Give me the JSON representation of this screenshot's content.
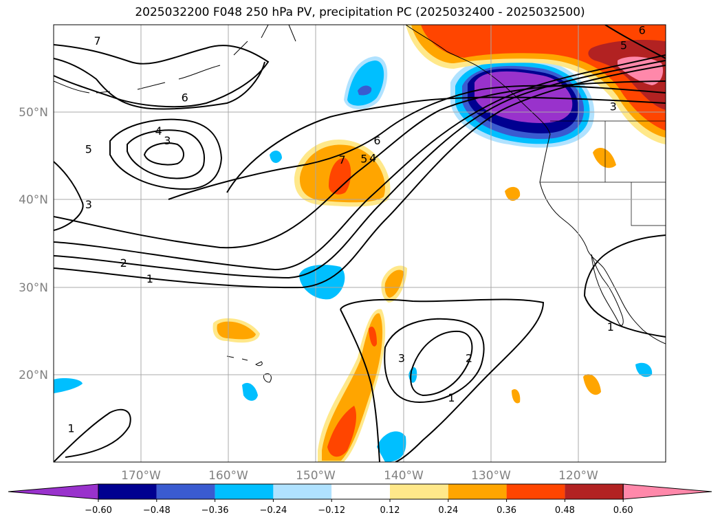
{
  "title": "2025032200 F048 250 hPa PV, precipitation PC (2025032400 - 2025032500)",
  "map": {
    "lat_labels": [
      "50°N",
      "40°N",
      "30°N",
      "20°N"
    ],
    "lon_labels": [
      "170°W",
      "160°W",
      "150°W",
      "140°W",
      "130°W",
      "120°W"
    ],
    "extent": {
      "lon": [
        -180,
        -110
      ],
      "lat": [
        10,
        60
      ]
    },
    "pv_contour_labels": [
      {
        "text": "7",
        "lon": -175,
        "lat": 58.2
      },
      {
        "text": "6",
        "lon": -165,
        "lat": 51.7
      },
      {
        "text": "4",
        "lon": -168,
        "lat": 47.9
      },
      {
        "text": "3",
        "lon": -167,
        "lat": 46.8
      },
      {
        "text": "5",
        "lon": -176,
        "lat": 45.8
      },
      {
        "text": "3",
        "lon": -176,
        "lat": 39.5
      },
      {
        "text": "2",
        "lon": -172,
        "lat": 32.8
      },
      {
        "text": "1",
        "lon": -169,
        "lat": 31.0
      },
      {
        "text": "7",
        "lon": -147,
        "lat": 44.6
      },
      {
        "text": "6",
        "lon": -143,
        "lat": 46.8
      },
      {
        "text": "5",
        "lon": -144.5,
        "lat": 44.7
      },
      {
        "text": "4",
        "lon": -143.5,
        "lat": 44.8
      },
      {
        "text": "3",
        "lon": -116,
        "lat": 50.7
      },
      {
        "text": "5",
        "lon": -114.8,
        "lat": 57.7
      },
      {
        "text": "6",
        "lon": -112.7,
        "lat": 59.4
      },
      {
        "text": "3",
        "lon": -140.2,
        "lat": 21.9
      },
      {
        "text": "2",
        "lon": -132.5,
        "lat": 21.9
      },
      {
        "text": "1",
        "lon": -134.5,
        "lat": 17.4
      },
      {
        "text": "1",
        "lon": -116.3,
        "lat": 25.5
      },
      {
        "text": "1",
        "lon": -178,
        "lat": 13.9
      }
    ],
    "precip_shading": [
      {
        "class": "pos_strong",
        "color": "#ff4500",
        "lon": -146,
        "lat": 42.5
      },
      {
        "class": "neg_strong",
        "color": "#000080",
        "lon": -126,
        "lat": 51.5
      },
      {
        "class": "pos_peak",
        "color": "#ff88aa",
        "lon": -114.5,
        "lat": 55.8
      }
    ]
  },
  "colorbar": {
    "ticks": [
      "−0.60",
      "−0.48",
      "−0.36",
      "−0.24",
      "−0.12",
      "0.12",
      "0.24",
      "0.36",
      "0.48",
      "0.60"
    ],
    "colors": [
      "#9932cc",
      "#000090",
      "#3a5bd0",
      "#00bfff",
      "#b0e2ff",
      "#ffffff",
      "#ffe88a",
      "#ffa500",
      "#ff4500",
      "#b22222",
      "#ff88aa"
    ]
  }
}
